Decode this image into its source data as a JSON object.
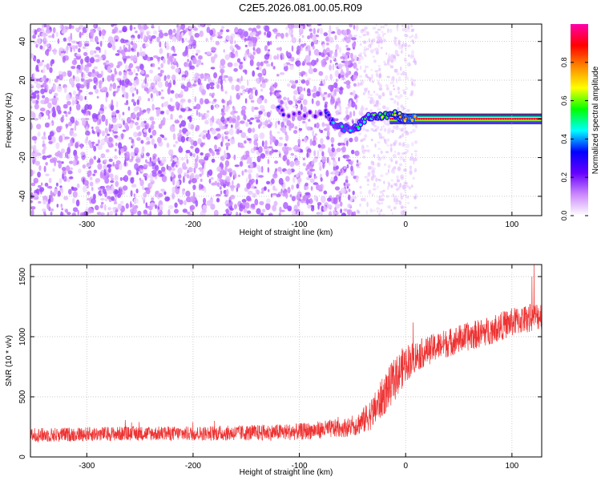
{
  "figure_title": "C2E5.2026.081.00.05.R09",
  "chart_data": [
    {
      "type": "heatmap",
      "id": "spectrogram",
      "xlabel": "Height of straight line (km)",
      "ylabel": "Frequency (Hz)",
      "xlim": [
        -353,
        128
      ],
      "ylim": [
        -50,
        49
      ],
      "xticks": [
        -300,
        -200,
        -100,
        0,
        100
      ],
      "yticks": [
        -40,
        -20,
        0,
        20,
        40
      ],
      "colorbar": {
        "label": "Normalized spectral amplitude",
        "range": [
          0,
          1
        ],
        "ticks": [
          0.0,
          0.2,
          0.4,
          0.6,
          0.8
        ],
        "colormap": [
          "#ffffff",
          "#cc88ff",
          "#6600ff",
          "#0000ff",
          "#00ffff",
          "#00ff00",
          "#ffff00",
          "#ff8800",
          "#ff0000",
          "#ff00aa"
        ]
      },
      "noise_region": {
        "x_range": [
          -353,
          -45
        ],
        "typical_amplitude": 0.1,
        "max_amplitude": 0.15
      },
      "fade_region": {
        "x_range": [
          -45,
          10
        ],
        "typical_amplitude": 0.03
      },
      "carrier_line": {
        "frequency": 0,
        "x_start": -15,
        "x_end": 128,
        "amplitude": 0.92
      },
      "signal_track": [
        {
          "x": -120,
          "f": 6,
          "amp": 0.25
        },
        {
          "x": -115,
          "f": 2,
          "amp": 0.2
        },
        {
          "x": -75,
          "f": 3,
          "amp": 0.25
        },
        {
          "x": -68,
          "f": -2,
          "amp": 0.35
        },
        {
          "x": -60,
          "f": -4,
          "amp": 0.4
        },
        {
          "x": -52,
          "f": -6,
          "amp": 0.35
        },
        {
          "x": -45,
          "f": -4,
          "amp": 0.45
        },
        {
          "x": -38,
          "f": 0,
          "amp": 0.45
        },
        {
          "x": -30,
          "f": 2,
          "amp": 0.5
        },
        {
          "x": -22,
          "f": 1,
          "amp": 0.55
        },
        {
          "x": -10,
          "f": 2,
          "amp": 0.6
        },
        {
          "x": -5,
          "f": 1,
          "amp": 0.65
        },
        {
          "x": 0,
          "f": 0,
          "amp": 0.7
        },
        {
          "x": 10,
          "f": 0,
          "amp": 0.75
        }
      ]
    },
    {
      "type": "line",
      "id": "snr",
      "xlabel": "Height of straight line (km)",
      "ylabel": "SNR (10 * v/v)",
      "xlim": [
        -353,
        128
      ],
      "ylim": [
        0,
        1600
      ],
      "xticks": [
        -300,
        -200,
        -100,
        0,
        100
      ],
      "yticks": [
        0,
        500,
        1000,
        1500
      ],
      "color": "#ee3333",
      "series": [
        {
          "name": "SNR",
          "x": [
            -353,
            -300,
            -250,
            -200,
            -150,
            -100,
            -75,
            -50,
            -40,
            -30,
            -20,
            -10,
            0,
            10,
            20,
            30,
            50,
            75,
            100,
            128
          ],
          "values": [
            180,
            190,
            195,
            195,
            200,
            210,
            230,
            250,
            300,
            380,
            520,
            650,
            780,
            840,
            880,
            920,
            980,
            1040,
            1120,
            1180
          ],
          "noise_amplitude": [
            60,
            60,
            60,
            60,
            65,
            70,
            75,
            80,
            110,
            140,
            170,
            180,
            160,
            130,
            120,
            120,
            120,
            120,
            120,
            120
          ],
          "peak_value": 1600
        }
      ]
    }
  ]
}
